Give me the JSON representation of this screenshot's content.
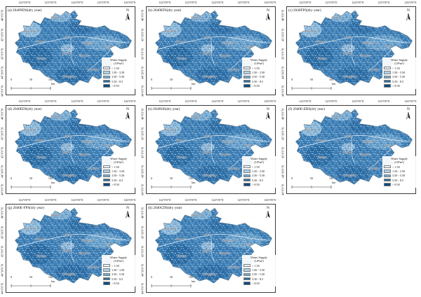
{
  "figure": {
    "background": "#ffffff"
  },
  "panels": [
    {
      "id": "a",
      "title": "(a) 2040NDS(dry year)"
    },
    {
      "id": "b",
      "title": "(b) 2040EPS(dry year)"
    },
    {
      "id": "c",
      "title": "(c) 2040FPS(dry year)"
    },
    {
      "id": "d",
      "title": "(d) 2040EDS(dry year)"
    },
    {
      "id": "e",
      "title": "(e) 2040SIS(dry year)"
    },
    {
      "id": "f",
      "title": "(f) 2040E-EBS(dry year)"
    },
    {
      "id": "g",
      "title": "(g) 2040E-FPS(dry year)"
    },
    {
      "id": "h",
      "title": "(h) 2040CDS(dry year)"
    }
  ],
  "shared": {
    "axis_top": [
      "122°0'0\"E",
      "123°0'0\"E",
      "124°0'0\"E",
      "125°0'0\"E",
      "126°0'0\"E"
    ],
    "axis_left": [
      "46°0'0\"N",
      "45°30'0\"N",
      "45°0'0\"N",
      "44°30'0\"N",
      "44°0'0\"N"
    ],
    "north_label": "N",
    "cities": [
      {
        "name": "Zhenlai"
      },
      {
        "name": "Baicheng"
      },
      {
        "name": "Taonan"
      },
      {
        "name": "Da'an"
      },
      {
        "name": "Songyuan"
      },
      {
        "name": "Fuyu"
      },
      {
        "name": "Qian'an"
      },
      {
        "name": "Qianguo"
      },
      {
        "name": "Tongyu"
      },
      {
        "name": "Nong'an"
      },
      {
        "name": "Changling"
      }
    ],
    "legend": {
      "title_line1": "Water Supply",
      "title_line2": "(10⁸m³)",
      "classes": [
        {
          "label": "< 1.50",
          "color": "#e9f2fa"
        },
        {
          "label": "1.50 - 3.50",
          "color": "#aed0e8"
        },
        {
          "label": "3.50 - 5.50",
          "color": "#71a8d1"
        },
        {
          "label": "5.50 - 8.5",
          "color": "#30709f"
        },
        {
          "label": "> 8.50",
          "color": "#0d4a80"
        }
      ]
    },
    "scalebar": {
      "ticks": [
        "0",
        "50",
        "100"
      ],
      "unit": "km"
    },
    "map_colors": {
      "base": "#3f80b6",
      "dark": "#1c5c95",
      "light": "#a9cde6",
      "mid_light": "#7fb0d6",
      "lightest": "#e2eef8"
    }
  }
}
